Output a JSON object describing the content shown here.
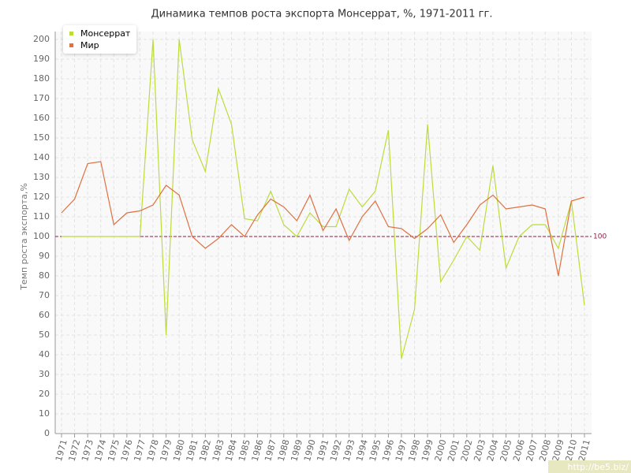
{
  "chart_data": {
    "type": "line",
    "title": "Динамика темпов роста экспорта Монсеррат, %, 1971-2011 гг.",
    "y_label": "Темп роста экспорта,%",
    "categories": [
      "1971",
      "1972",
      "1973",
      "1974",
      "1975",
      "1976",
      "1977",
      "1978",
      "1979",
      "1980",
      "1981",
      "1982",
      "1983",
      "1984",
      "1985",
      "1986",
      "1987",
      "1988",
      "1989",
      "1990",
      "1991",
      "1992",
      "1993",
      "1994",
      "1995",
      "1996",
      "1997",
      "1998",
      "1999",
      "2000",
      "2001",
      "2002",
      "2003",
      "2004",
      "2005",
      "2006",
      "2007",
      "2008",
      "2009",
      "2010",
      "2011"
    ],
    "series": [
      {
        "name": "Монсеррат",
        "color": "#bcdc3c",
        "values": [
          100,
          100,
          100,
          100,
          100,
          100,
          100,
          200,
          50,
          200,
          149,
          133,
          175,
          157,
          109,
          108,
          123,
          106,
          100,
          112,
          105,
          105,
          124,
          115,
          123,
          154,
          38,
          63,
          157,
          77,
          88,
          100,
          93,
          136,
          84,
          100,
          106,
          106,
          94,
          118,
          65
        ]
      },
      {
        "name": "Мир",
        "color": "#e07040",
        "values": [
          112,
          119,
          137,
          138,
          106,
          112,
          113,
          116,
          126,
          121,
          100,
          94,
          99,
          106,
          100,
          111,
          119,
          115,
          108,
          121,
          103,
          114,
          98,
          110,
          118,
          105,
          104,
          99,
          104,
          111,
          97,
          106,
          116,
          121,
          114,
          115,
          116,
          114,
          80,
          118,
          120
        ]
      }
    ],
    "ylim": [
      0,
      200
    ],
    "yticks": [
      0,
      10,
      20,
      30,
      40,
      50,
      60,
      70,
      80,
      90,
      100,
      110,
      120,
      130,
      140,
      150,
      160,
      170,
      180,
      190,
      200
    ],
    "grid": true,
    "reference_line": 100,
    "legend": "top-left",
    "watermark": "http://be5.biz/"
  }
}
